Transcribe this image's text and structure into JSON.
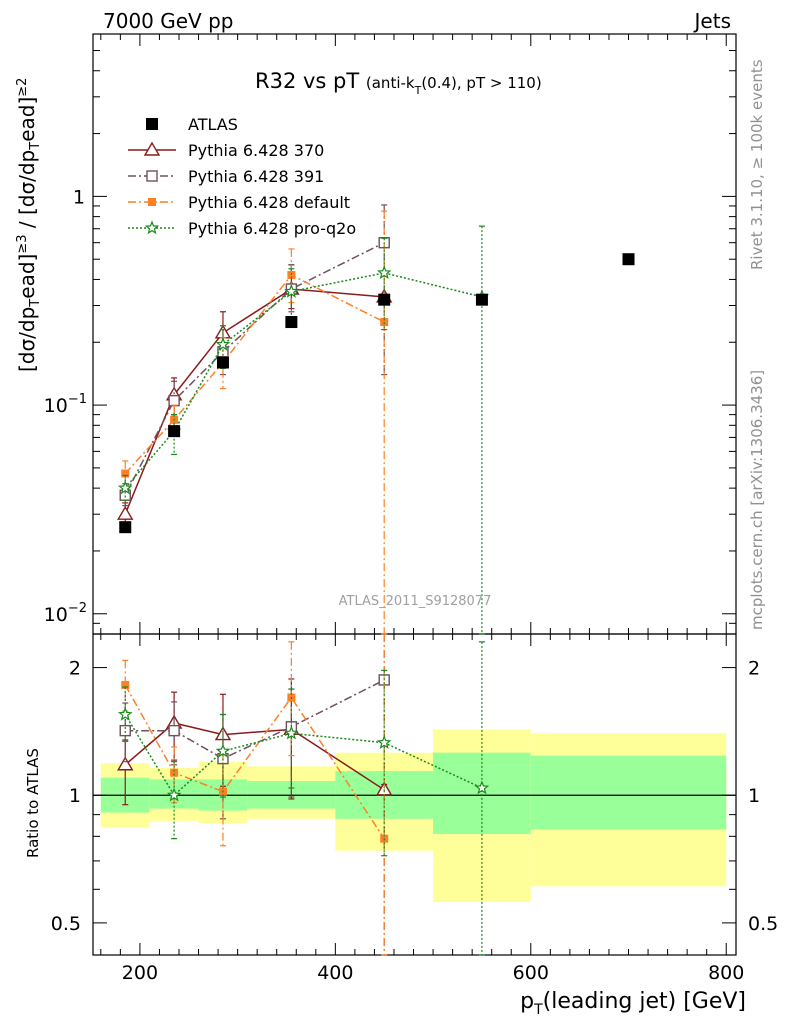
{
  "header": {
    "left": "7000 GeV pp",
    "right": "Jets",
    "plot_id": "ATLAS_2011_S9128077"
  },
  "side_labels": {
    "rivet": "Rivet 3.1.10, ≥ 100k events",
    "mcplots": "mcplots.cern.ch [arXiv:1306.3436]"
  },
  "colors": {
    "data": "#000000",
    "p370": "#8b1a1a",
    "p391": "#6e5060",
    "pdefault": "#ff7f27",
    "pq2o": "#1a8a1a",
    "band_inner": "#99ff99",
    "band_outer": "#ffff99"
  },
  "chart_data": [
    {
      "type": "scatter",
      "title_main": "R32 vs pT",
      "title_sub": "(anti-k",
      "title_sub_sub": "T",
      "title_sub_end": "(0.4), pT > 110)",
      "ylabel": "[dσ/dp_Tead]^≥3 / [dσ/dp_Tead]^≥2",
      "yscale": "log",
      "ylim": [
        0.008,
        6
      ],
      "xlim": [
        152,
        810
      ],
      "y_ticks": [
        {
          "value": 1,
          "label": "1"
        },
        {
          "value": 0.1,
          "label": "10",
          "sup": "−1"
        },
        {
          "value": 0.01,
          "label": "10",
          "sup": "−2"
        }
      ],
      "legend_position": "top-left",
      "series": [
        {
          "name": "ATLAS",
          "key": "data",
          "x": [
            185,
            235,
            285,
            355,
            450,
            550,
            700
          ],
          "y": [
            0.026,
            0.075,
            0.16,
            0.25,
            0.32,
            0.32,
            0.5
          ]
        },
        {
          "name": "Pythia 6.428 370",
          "key": "p370",
          "x": [
            185,
            235,
            285,
            355,
            450
          ],
          "y": [
            0.03,
            0.112,
            0.222,
            0.36,
            0.33
          ],
          "err_hi": [
            0.034,
            0.135,
            0.28,
            0.47,
            0.34
          ],
          "err_lo": [
            0.027,
            0.09,
            0.18,
            0.29,
            0.32
          ]
        },
        {
          "name": "Pythia 6.428 391",
          "key": "p391",
          "x": [
            185,
            235,
            285,
            355,
            450
          ],
          "y": [
            0.037,
            0.105,
            0.18,
            0.36,
            0.6
          ],
          "err_hi": [
            0.042,
            0.13,
            0.23,
            0.47,
            0.91
          ],
          "err_lo": [
            0.033,
            0.085,
            0.14,
            0.28,
            0.14
          ]
        },
        {
          "name": "Pythia 6.428 default",
          "key": "pdefault",
          "x": [
            185,
            235,
            285,
            355,
            450
          ],
          "y": [
            0.047,
            0.085,
            0.16,
            0.42,
            0.25
          ],
          "err_hi": [
            0.054,
            0.1,
            0.21,
            0.56,
            0.85
          ],
          "err_lo": [
            0.041,
            0.072,
            0.12,
            0.31,
            0.001
          ]
        },
        {
          "name": "Pythia 6.428 pro-q2o",
          "key": "pq2o",
          "x": [
            185,
            235,
            285,
            355,
            450,
            550
          ],
          "y": [
            0.04,
            0.075,
            0.195,
            0.35,
            0.43,
            0.33
          ],
          "err_hi": [
            0.046,
            0.09,
            0.24,
            0.45,
            0.63,
            0.72
          ],
          "err_lo": [
            0.035,
            0.058,
            0.15,
            0.26,
            0.23,
            0.001
          ]
        }
      ]
    },
    {
      "type": "scatter",
      "ylabel": "Ratio to ATLAS",
      "xlabel": "p_T(leading jet) [GeV]",
      "xlabel_main": "p",
      "xlabel_sub": "T",
      "xlabel_end": "(leading jet) [GeV]",
      "yscale": "log",
      "ylim": [
        0.42,
        2.4
      ],
      "xlim": [
        152,
        810
      ],
      "x_ticks": [
        200,
        400,
        600,
        800
      ],
      "y_ticks": [
        {
          "value": 0.5,
          "label": "0.5"
        },
        {
          "value": 1,
          "label": "1"
        },
        {
          "value": 2,
          "label": "2"
        }
      ],
      "bands": [
        {
          "x0": 160,
          "x1": 210,
          "inner": [
            0.91,
            1.1
          ],
          "outer": [
            0.84,
            1.19
          ]
        },
        {
          "x0": 210,
          "x1": 260,
          "inner": [
            0.93,
            1.09
          ],
          "outer": [
            0.87,
            1.16
          ]
        },
        {
          "x0": 260,
          "x1": 310,
          "inner": [
            0.92,
            1.09
          ],
          "outer": [
            0.86,
            1.2
          ]
        },
        {
          "x0": 310,
          "x1": 400,
          "inner": [
            0.93,
            1.08
          ],
          "outer": [
            0.88,
            1.17
          ]
        },
        {
          "x0": 400,
          "x1": 500,
          "inner": [
            0.88,
            1.14
          ],
          "outer": [
            0.74,
            1.26
          ]
        },
        {
          "x0": 500,
          "x1": 600,
          "inner": [
            0.81,
            1.26
          ],
          "outer": [
            0.56,
            1.43
          ]
        },
        {
          "x0": 600,
          "x1": 800,
          "inner": [
            0.83,
            1.24
          ],
          "outer": [
            0.61,
            1.4
          ]
        }
      ],
      "series": [
        {
          "name": "Pythia 6.428 370",
          "key": "p370",
          "x": [
            185,
            235,
            285,
            355,
            450
          ],
          "y": [
            1.18,
            1.48,
            1.39,
            1.43,
            1.03
          ],
          "err_hi": [
            1.35,
            1.75,
            1.73,
            1.88,
            1.06
          ],
          "err_lo": [
            0.95,
            1.21,
            1.05,
            0.98,
            1.0
          ]
        },
        {
          "name": "Pythia 6.428 391",
          "key": "p391",
          "x": [
            185,
            235,
            285,
            355,
            450
          ],
          "y": [
            1.42,
            1.42,
            1.22,
            1.45,
            1.87
          ],
          "err_hi": [
            1.65,
            1.66,
            1.55,
            1.78,
            2.7
          ],
          "err_lo": [
            1.2,
            1.18,
            0.88,
            0.99,
            0.38
          ]
        },
        {
          "name": "Pythia 6.428 default",
          "key": "pdefault",
          "x": [
            185,
            235,
            285,
            355,
            450
          ],
          "y": [
            1.82,
            1.13,
            1.02,
            1.7,
            0.79
          ],
          "err_hi": [
            2.08,
            1.3,
            1.26,
            2.3,
            2.7
          ],
          "err_lo": [
            1.58,
            0.96,
            0.76,
            1.24,
            0.38
          ]
        },
        {
          "name": "Pythia 6.428 pro-q2o",
          "key": "pq2o",
          "x": [
            185,
            235,
            285,
            355,
            450,
            550
          ],
          "y": [
            1.55,
            1.0,
            1.27,
            1.4,
            1.33,
            1.04
          ],
          "err_hi": [
            1.8,
            1.2,
            1.55,
            1.78,
            1.97,
            2.3
          ],
          "err_lo": [
            1.34,
            0.79,
            0.99,
            1.04,
            0.72,
            0.38
          ]
        }
      ]
    }
  ]
}
